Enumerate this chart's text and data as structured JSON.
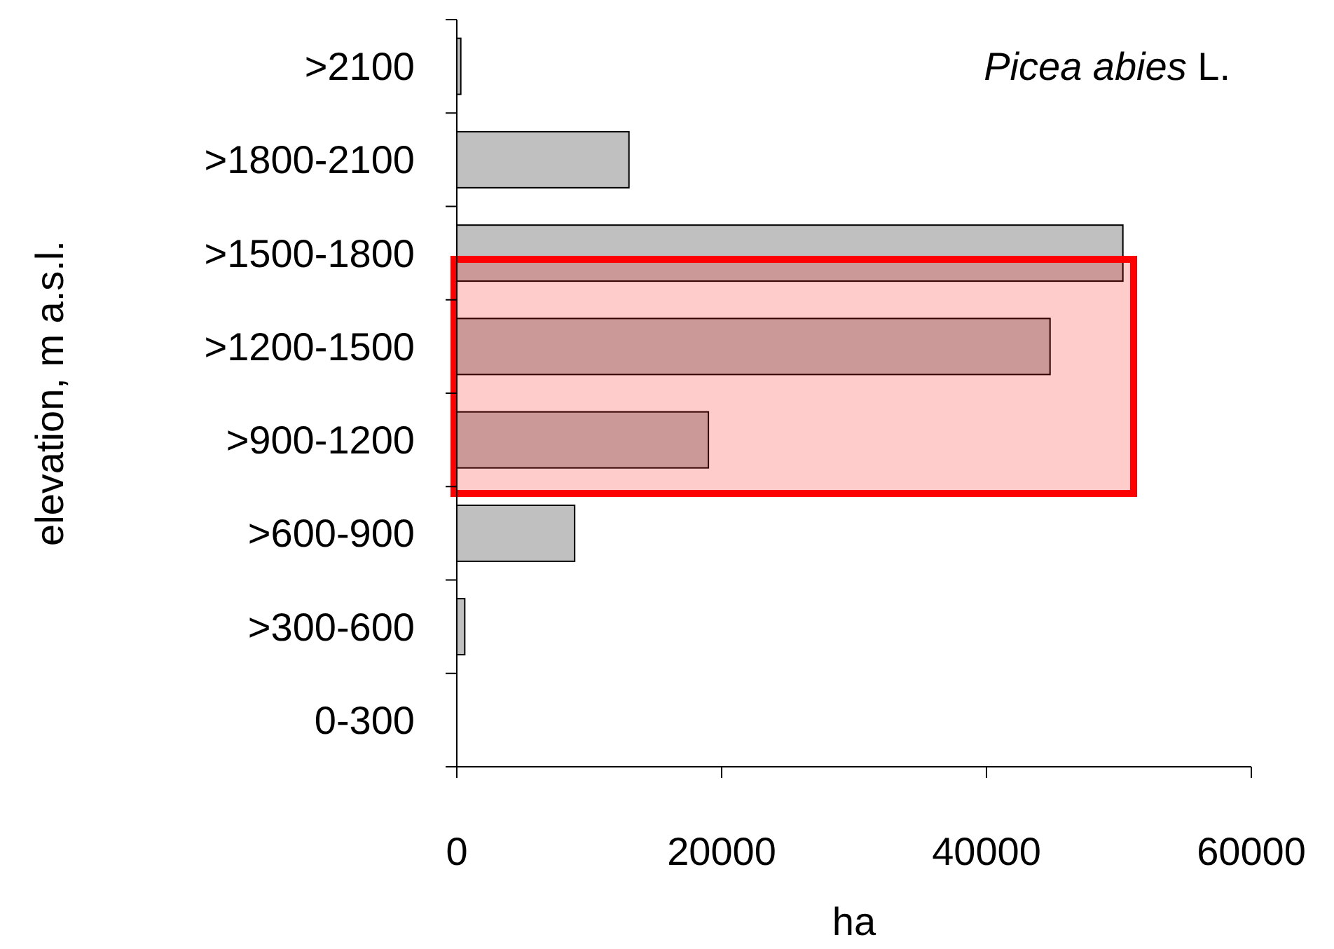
{
  "chart_data": {
    "type": "bar",
    "orientation": "horizontal",
    "title": "Picea abies L.",
    "xlabel": "ha",
    "ylabel": "elevation, m a.s.l.",
    "categories": [
      ">2100",
      ">1800-2100",
      ">1500-1800",
      ">1200-1500",
      ">900-1200",
      ">600-900",
      ">300-600",
      "0-300"
    ],
    "values": [
      300,
      13000,
      50300,
      44800,
      19000,
      8900,
      600,
      0
    ],
    "color": "#c0c0c0",
    "xlim": [
      0,
      60000
    ],
    "xticks": [
      0,
      20000,
      40000,
      60000
    ],
    "grid": false
  }
}
